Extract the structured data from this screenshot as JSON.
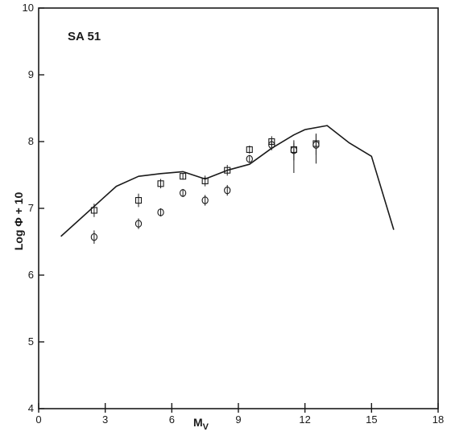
{
  "chart_data": {
    "type": "line",
    "title": "SA 51",
    "xlabel": "M",
    "xlabel_sub": "V",
    "ylabel": "Log Φ + 10",
    "xlim": [
      0,
      18
    ],
    "ylim": [
      4,
      10
    ],
    "xticks": [
      0,
      3,
      6,
      9,
      12,
      15,
      18
    ],
    "yticks": [
      4,
      5,
      6,
      7,
      8,
      9,
      10
    ],
    "grid": false,
    "series": [
      {
        "kind": "line",
        "x": [
          1.0,
          3.5,
          4.5,
          5.5,
          6.5,
          7.5,
          8.5,
          9.5,
          10.5,
          11.5,
          12.0,
          13.0,
          14.0,
          15.0,
          16.0
        ],
        "y": [
          6.58,
          7.33,
          7.48,
          7.52,
          7.55,
          7.44,
          7.57,
          7.66,
          7.9,
          8.1,
          8.18,
          8.24,
          7.98,
          7.78,
          6.68
        ]
      },
      {
        "kind": "squares",
        "x": [
          2.5,
          4.5,
          5.5,
          6.5,
          7.5,
          8.5,
          9.5,
          10.5,
          11.5,
          12.5
        ],
        "y": [
          6.97,
          7.12,
          7.37,
          7.48,
          7.41,
          7.57,
          7.88,
          8.0,
          7.88,
          7.97
        ],
        "err_lo": [
          0.1,
          0.1,
          0.07,
          0.05,
          0.08,
          0.08,
          0.06,
          0.08,
          0.35,
          0.3
        ],
        "err_hi": [
          0.1,
          0.1,
          0.07,
          0.05,
          0.08,
          0.08,
          0.06,
          0.08,
          0.1,
          0.15
        ]
      },
      {
        "kind": "circles",
        "x": [
          2.5,
          4.5,
          5.5,
          6.5,
          7.5,
          8.5,
          9.5,
          10.5,
          11.5,
          12.5
        ],
        "y": [
          6.57,
          6.77,
          6.94,
          7.23,
          7.12,
          7.27,
          7.74,
          7.95,
          7.87,
          7.95
        ],
        "err_lo": [
          0.1,
          0.08,
          0.06,
          0.06,
          0.08,
          0.08,
          0.06,
          0.08,
          0.15,
          0.15
        ],
        "err_hi": [
          0.1,
          0.08,
          0.06,
          0.06,
          0.08,
          0.08,
          0.06,
          0.08,
          0.15,
          0.15
        ]
      }
    ]
  }
}
